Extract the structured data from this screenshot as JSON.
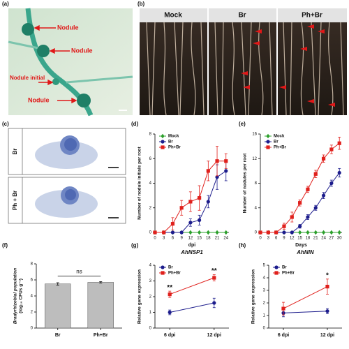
{
  "photos": {
    "a": {
      "label": "(a)",
      "texts": [
        "Nodule",
        "Nodule",
        "Nodule initial",
        "Nodule"
      ]
    },
    "b": {
      "label": "(b)",
      "headers": [
        "Mock",
        "Br",
        "Ph+Br"
      ]
    },
    "c": {
      "label": "(c)",
      "rows": [
        "Br",
        "Ph + Br"
      ]
    }
  },
  "chart_data": [
    {
      "type": "line",
      "label": "(d)",
      "x_label": "dpi",
      "y_label": "Number of nodule initials per root",
      "x": [
        0,
        3,
        6,
        9,
        12,
        15,
        18,
        21,
        24
      ],
      "xlim": [
        0,
        25
      ],
      "xticks": [
        0,
        3,
        6,
        9,
        12,
        15,
        18,
        21,
        24
      ],
      "ylim": [
        0,
        8
      ],
      "yticks": [
        0,
        2,
        4,
        6,
        8
      ],
      "series": [
        {
          "name": "Mock",
          "color": "#2ca02c",
          "marker": "diamond",
          "values": [
            0,
            0,
            0,
            0,
            0,
            0,
            0,
            0,
            0
          ],
          "errors": [
            0,
            0,
            0,
            0,
            0,
            0,
            0,
            0,
            0
          ]
        },
        {
          "name": "Br",
          "color": "#1c1c8c",
          "marker": "circle",
          "values": [
            0,
            0,
            0,
            0,
            0.8,
            1,
            2.5,
            4.5,
            5
          ],
          "errors": [
            0,
            0,
            0,
            0,
            0.3,
            0.4,
            0.5,
            1,
            0.8
          ]
        },
        {
          "name": "Ph+Br",
          "color": "#e0201c",
          "marker": "square",
          "values": [
            0,
            0,
            0.7,
            2,
            2.5,
            2.8,
            5,
            5.8,
            5.8
          ],
          "errors": [
            0,
            0,
            0.5,
            0.6,
            0.8,
            1,
            0.8,
            1.2,
            0.6
          ]
        }
      ]
    },
    {
      "type": "line",
      "label": "(e)",
      "x_label": "Days",
      "y_label": "Number of nodules per root",
      "x": [
        0,
        3,
        6,
        9,
        12,
        15,
        18,
        21,
        24,
        27,
        30
      ],
      "xlim": [
        0,
        31
      ],
      "xticks": [
        0,
        3,
        6,
        9,
        12,
        15,
        18,
        21,
        24,
        27,
        30
      ],
      "ylim": [
        0,
        16
      ],
      "yticks": [
        0,
        4,
        8,
        12,
        16
      ],
      "series": [
        {
          "name": "Mock",
          "color": "#2ca02c",
          "marker": "diamond",
          "values": [
            0,
            0,
            0,
            0,
            0,
            0,
            0,
            0,
            0,
            0,
            0
          ],
          "errors": [
            0,
            0,
            0,
            0,
            0,
            0,
            0,
            0,
            0,
            0,
            0
          ]
        },
        {
          "name": "Br",
          "color": "#1c1c8c",
          "marker": "circle",
          "values": [
            0,
            0,
            0,
            0,
            0,
            1,
            2.5,
            4,
            6,
            8,
            9.7
          ],
          "errors": [
            0,
            0,
            0,
            0,
            0,
            0.3,
            0.4,
            0.4,
            0.5,
            0.5,
            0.7
          ]
        },
        {
          "name": "Ph+Br",
          "color": "#e0201c",
          "marker": "square",
          "values": [
            0,
            0,
            0,
            1,
            2.5,
            4.8,
            7,
            9.5,
            12,
            13.5,
            14.5
          ],
          "errors": [
            0,
            0,
            0,
            0.5,
            0.8,
            0.5,
            0.5,
            0.6,
            0.6,
            0.7,
            1
          ]
        }
      ]
    },
    {
      "type": "bar",
      "label": "(f)",
      "y_label": [
        "Bradyrhizobial population",
        "(log₁₀ CFUs g⁻¹)"
      ],
      "categories": [
        "Br",
        "Ph+Br"
      ],
      "values": [
        5.5,
        5.7
      ],
      "errors": [
        0.15,
        0.08
      ],
      "color": "#bdbdbd",
      "ylim": [
        0,
        8
      ],
      "yticks": [
        0,
        2,
        4,
        6,
        8
      ],
      "annotation": "ns"
    },
    {
      "type": "line",
      "label": "(g)",
      "title": "AhNSP1",
      "y_label": "Relative gene expression",
      "categories": [
        "6 dpi",
        "12 dpi"
      ],
      "ylim": [
        0,
        4
      ],
      "yticks": [
        0,
        1,
        2,
        3,
        4
      ],
      "series": [
        {
          "name": "Br",
          "color": "#1c1c8c",
          "marker": "circle",
          "values": [
            1,
            1.6
          ],
          "errors": [
            0.15,
            0.3
          ]
        },
        {
          "name": "Ph+Br",
          "color": "#e0201c",
          "marker": "square",
          "values": [
            2.15,
            3.2
          ],
          "errors": [
            0.2,
            0.2
          ]
        }
      ],
      "annotations": [
        {
          "text": "**",
          "category": "6 dpi"
        },
        {
          "text": "**",
          "category": "12 dpi"
        }
      ]
    },
    {
      "type": "line",
      "label": "(h)",
      "title": "AhNIN",
      "y_label": "Relative gene expression",
      "categories": [
        "6 dpi",
        "12 dpi"
      ],
      "ylim": [
        0,
        5
      ],
      "yticks": [
        0,
        1,
        2,
        3,
        4,
        5
      ],
      "series": [
        {
          "name": "Br",
          "color": "#1c1c8c",
          "marker": "circle",
          "values": [
            1.2,
            1.35
          ],
          "errors": [
            0.3,
            0.2
          ]
        },
        {
          "name": "Ph+Br",
          "color": "#e0201c",
          "marker": "square",
          "values": [
            1.55,
            3.3
          ],
          "errors": [
            0.5,
            0.6
          ]
        }
      ],
      "annotations": [
        {
          "text": "*",
          "category": "12 dpi"
        }
      ]
    }
  ]
}
